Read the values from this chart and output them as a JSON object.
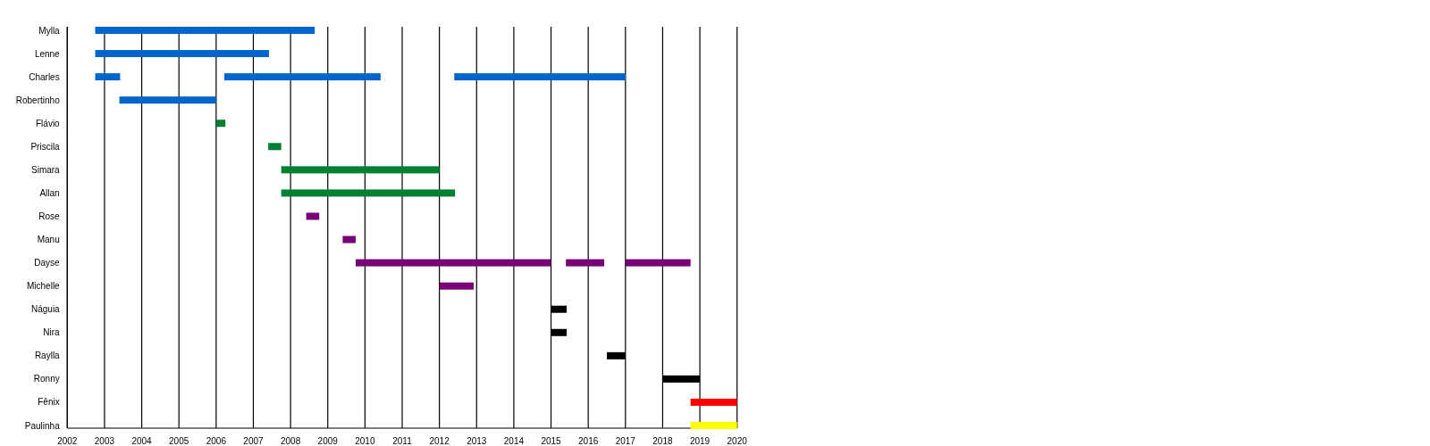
{
  "chart_data": {
    "type": "bar",
    "orientation": "horizontal",
    "categories": [
      "Mylla",
      "Lenne",
      "Charles",
      "Robertinho",
      "Flávio",
      "Priscila",
      "Simara",
      "Allan",
      "Rose",
      "Manu",
      "Dayse",
      "Michelle",
      "Náguia",
      "Nira",
      "Raylla",
      "Ronny",
      "Fênix",
      "Paulinha"
    ],
    "series": [
      {
        "colors": [
          "#0066cc",
          "#0066cc",
          "#0066cc",
          "#0066cc",
          "#008033",
          "#008033",
          "#008033",
          "#008033",
          "#770077",
          "#770077",
          "#770077",
          "#770077",
          "#000000",
          "#000000",
          "#000000",
          "#000000",
          "#ff0000",
          "#ffff00"
        ],
        "base": [
          2002.75,
          2002.75,
          2002.75,
          2003.4,
          2006,
          2007.4,
          2007.75,
          2007.75,
          2008.42,
          2009.4,
          2009.75,
          2012,
          2015,
          2015,
          2016.5,
          2018,
          2018.75,
          2018.75
        ],
        "values": [
          5.9,
          4.67,
          0.67,
          2.6,
          0.25,
          0.35,
          4.25,
          4.67,
          0.35,
          0.35,
          5.25,
          0.92,
          0.42,
          0.42,
          0.5,
          1,
          1.25,
          1.25
        ]
      },
      {
        "colors": [
          null,
          null,
          "#0066cc",
          null,
          null,
          null,
          null,
          null,
          null,
          null,
          "#770077",
          null,
          null,
          null,
          null,
          null,
          null,
          null
        ],
        "base": [
          null,
          null,
          2006.22,
          null,
          null,
          null,
          null,
          null,
          null,
          null,
          2015.4,
          null,
          null,
          null,
          null,
          null,
          null,
          null
        ],
        "values": [
          null,
          null,
          4.2,
          null,
          null,
          null,
          null,
          null,
          null,
          null,
          1.03,
          null,
          null,
          null,
          null,
          null,
          null,
          null
        ]
      },
      {
        "colors": [
          null,
          null,
          "#0066cc",
          null,
          null,
          null,
          null,
          null,
          null,
          null,
          "#770077",
          null,
          null,
          null,
          null,
          null,
          null,
          null
        ],
        "base": [
          null,
          null,
          2012.4,
          null,
          null,
          null,
          null,
          null,
          null,
          null,
          2017,
          null,
          null,
          null,
          null,
          null,
          null,
          null
        ],
        "values": [
          null,
          null,
          4.6,
          null,
          null,
          null,
          null,
          null,
          null,
          null,
          1.75,
          null,
          null,
          null,
          null,
          null,
          null,
          null
        ]
      }
    ],
    "xlim": [
      2002,
      2020
    ],
    "xticks": [
      2002,
      2003,
      2004,
      2005,
      2006,
      2007,
      2008,
      2009,
      2010,
      2011,
      2012,
      2013,
      2014,
      2015,
      2016,
      2017,
      2018,
      2019,
      2020
    ],
    "grid": "x"
  }
}
